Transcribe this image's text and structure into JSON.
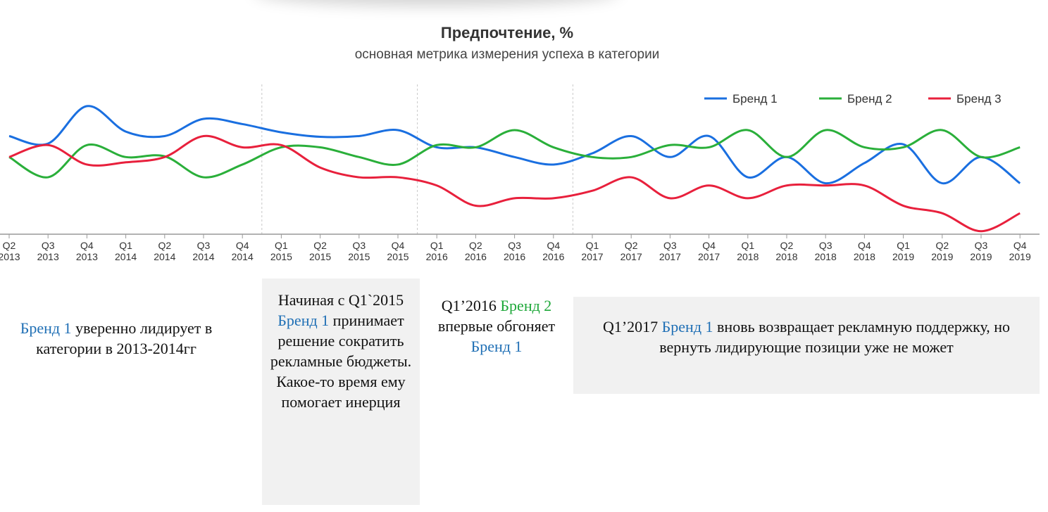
{
  "chart_data": {
    "type": "line",
    "title": "Предпочтение, %",
    "subtitle": "основная метрика измерения успеха в категории",
    "categories": [
      "Q2 2013",
      "Q3 2013",
      "Q4 2013",
      "Q1 2014",
      "Q2 2014",
      "Q3 2014",
      "Q4 2014",
      "Q1 2015",
      "Q2 2015",
      "Q3 2015",
      "Q4 2015",
      "Q1 2016",
      "Q2 2016",
      "Q3 2016",
      "Q4 2016",
      "Q1 2017",
      "Q2 2017",
      "Q3 2017",
      "Q4 2017",
      "Q1 2018",
      "Q2 2018",
      "Q3 2018",
      "Q4 2018",
      "Q1 2019",
      "Q2 2019",
      "Q3 2019",
      "Q4 2019"
    ],
    "tick_labels": [
      [
        "Q2",
        "2013"
      ],
      [
        "Q3",
        "2013"
      ],
      [
        "Q4",
        "2013"
      ],
      [
        "Q1",
        "2014"
      ],
      [
        "Q2",
        "2014"
      ],
      [
        "Q3",
        "2014"
      ],
      [
        "Q4",
        "2014"
      ],
      [
        "Q1",
        "2015"
      ],
      [
        "Q2",
        "2015"
      ],
      [
        "Q3",
        "2015"
      ],
      [
        "Q4",
        "2015"
      ],
      [
        "Q1",
        "2016"
      ],
      [
        "Q2",
        "2016"
      ],
      [
        "Q3",
        "2016"
      ],
      [
        "Q4",
        "2016"
      ],
      [
        "Q1",
        "2017"
      ],
      [
        "Q2",
        "2017"
      ],
      [
        "Q3",
        "2017"
      ],
      [
        "Q4",
        "2017"
      ],
      [
        "Q1",
        "2018"
      ],
      [
        "Q2",
        "2018"
      ],
      [
        "Q3",
        "2018"
      ],
      [
        "Q4",
        "2018"
      ],
      [
        "Q1",
        "2019"
      ],
      [
        "Q2",
        "2019"
      ],
      [
        "Q3",
        "2019"
      ],
      [
        "Q4",
        "2019"
      ]
    ],
    "series": [
      {
        "name": "Бренд 1",
        "color": "#1a6fe0",
        "values": [
          11.1,
          10.1,
          15.1,
          11.7,
          11.1,
          13.4,
          12.7,
          11.6,
          11.0,
          11.1,
          11.9,
          9.6,
          9.6,
          8.3,
          7.3,
          8.8,
          11.1,
          8.3,
          11.1,
          5.6,
          8.3,
          4.8,
          7.5,
          10.0,
          4.8,
          8.3,
          4.8
        ]
      },
      {
        "name": "Бренд 2",
        "color": "#2aaf3a",
        "values": [
          8.3,
          5.6,
          9.9,
          8.3,
          8.4,
          5.6,
          7.3,
          9.6,
          9.6,
          8.3,
          7.3,
          9.9,
          9.6,
          11.9,
          9.6,
          8.3,
          8.3,
          9.9,
          9.6,
          11.9,
          8.3,
          11.9,
          9.6,
          9.6,
          11.9,
          8.3,
          9.6
        ]
      },
      {
        "name": "Бренд 3",
        "color": "#e8203c",
        "values": [
          8.3,
          9.9,
          7.3,
          7.6,
          8.3,
          11.1,
          9.6,
          9.9,
          6.9,
          5.6,
          5.6,
          4.5,
          1.8,
          2.8,
          2.8,
          3.8,
          5.6,
          2.8,
          4.5,
          2.8,
          4.5,
          4.5,
          4.5,
          1.8,
          0.8,
          -1.6,
          0.8
        ]
      }
    ],
    "ylim": [
      -2,
      18
    ],
    "legend_position": "top-right",
    "grid": false,
    "divider_after": [
      "Q4 2014",
      "Q4 2015",
      "Q4 2016"
    ]
  },
  "notes": {
    "note1": {
      "b1": "Бренд 1",
      "text": " уверенно лидирует в категории в 2013-2014гг"
    },
    "note2": {
      "pre": "Начиная с Q1`2015 ",
      "b1": "Бренд 1",
      "text": " принимает решение сократить рекламные бюджеты. Какое-то время ему помогает инерция"
    },
    "note3": {
      "pre": "Q1’2016 ",
      "b2": "Бренд 2",
      "mid": " впервые обгоняет ",
      "b1": "Бренд 1"
    },
    "note4": {
      "pre": "Q1’2017 ",
      "b1": "Бренд 1",
      "text": " вновь возвращает рекламную поддержку, но вернуть лидирующие позиции уже не может"
    }
  }
}
